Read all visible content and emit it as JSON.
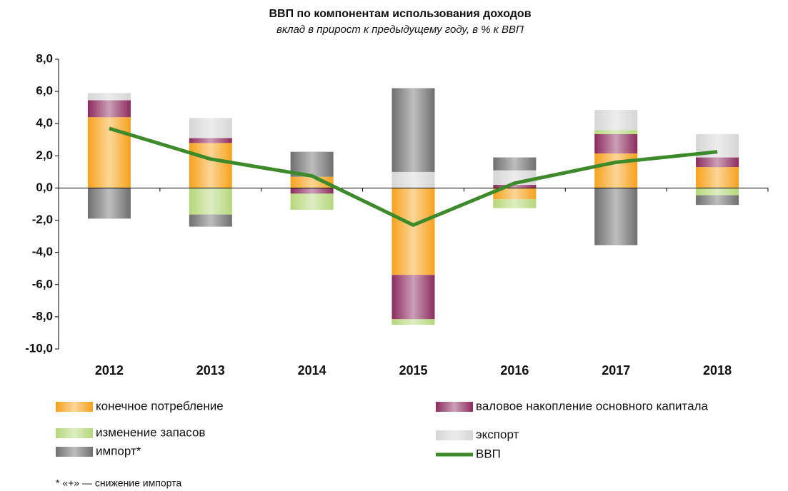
{
  "chart_data": {
    "type": "bar",
    "stacked": true,
    "title": "ВВП по компонентам использования доходов",
    "subtitle": "вклад в прирост к предыдущему году, в % к ВВП",
    "categories": [
      "2012",
      "2013",
      "2014",
      "2015",
      "2016",
      "2017",
      "2018"
    ],
    "series": [
      {
        "name": "конечное потребление",
        "color": "#f7a21b",
        "values": [
          4.4,
          2.8,
          0.7,
          -5.4,
          -0.7,
          2.15,
          1.3
        ]
      },
      {
        "name": "валовое накопление основного капитала",
        "color": "#8c2b5e",
        "values": [
          1.05,
          0.3,
          -0.35,
          -2.75,
          0.2,
          1.2,
          0.6
        ]
      },
      {
        "name": "изменение запасов",
        "color": "#b5d879",
        "values": [
          0,
          -1.65,
          -1.0,
          -0.35,
          -0.55,
          0.25,
          -0.45
        ]
      },
      {
        "name": "экспорт",
        "color": "#d6d6d6",
        "values": [
          0.45,
          1.25,
          0,
          1.0,
          0.9,
          1.25,
          1.45
        ]
      },
      {
        "name": "импорт*",
        "color": "#6f6f6f",
        "values": [
          -1.9,
          -0.75,
          1.55,
          5.2,
          0.8,
          -3.55,
          -0.6
        ]
      },
      {
        "name": "ВВП",
        "type": "line",
        "color": "#3c8a2a",
        "values": [
          3.7,
          1.8,
          0.75,
          -2.3,
          0.3,
          1.6,
          2.25
        ]
      }
    ],
    "ylim": [
      -10,
      8
    ],
    "yticks": [
      {
        "value": -10,
        "label": "-10,0"
      },
      {
        "value": -8,
        "label": "-8,0"
      },
      {
        "value": -6,
        "label": "-6,0"
      },
      {
        "value": -4,
        "label": "-4,0"
      },
      {
        "value": -2,
        "label": "-2,0"
      },
      {
        "value": 0,
        "label": "0,0"
      },
      {
        "value": 2,
        "label": "2,0"
      },
      {
        "value": 4,
        "label": "4,0"
      },
      {
        "value": 6,
        "label": "6,0"
      },
      {
        "value": 8,
        "label": "8,0"
      }
    ],
    "grid": false,
    "legend": "bottom",
    "note": "* «+» — снижение импорта"
  }
}
